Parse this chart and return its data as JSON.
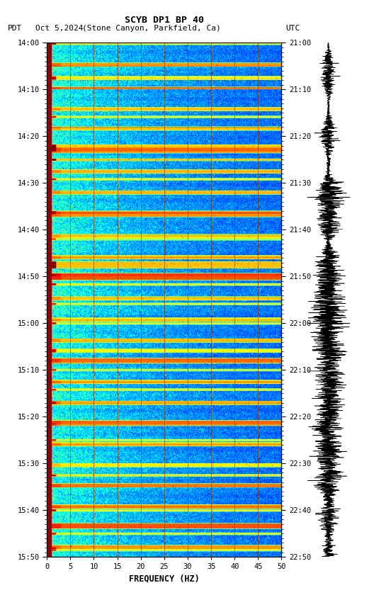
{
  "title_line1": "SCYB DP1 BP 40",
  "title_line2_pdt": "PDT",
  "title_line2_date": "Oct 5,2024",
  "title_line2_loc": "(Stone Canyon, Parkfield, Ca)",
  "title_line2_utc": "UTC",
  "xlabel": "FREQUENCY (HZ)",
  "freq_min": 0,
  "freq_max": 50,
  "pdt_ticks": [
    "14:00",
    "14:10",
    "14:20",
    "14:30",
    "14:40",
    "14:50",
    "15:00",
    "15:10",
    "15:20",
    "15:30",
    "15:40",
    "15:50"
  ],
  "utc_ticks": [
    "21:00",
    "21:10",
    "21:20",
    "21:30",
    "21:40",
    "21:50",
    "22:00",
    "22:10",
    "22:20",
    "22:30",
    "22:40",
    "22:50"
  ],
  "freq_ticks": [
    0,
    5,
    10,
    15,
    20,
    25,
    30,
    35,
    40,
    45,
    50
  ],
  "vertical_lines_freq": [
    5,
    10,
    15,
    20,
    25,
    30,
    35,
    40,
    45
  ],
  "background_color": "#ffffff",
  "colormap": "jet",
  "noise_seed": 42,
  "num_time_bins": 660,
  "num_freq_bins": 500,
  "vline_color": "#8B4500",
  "left_strip_color": "#8B0000",
  "waveform_line_times": [
    0.3,
    0.545
  ],
  "waveform_seed": 77
}
